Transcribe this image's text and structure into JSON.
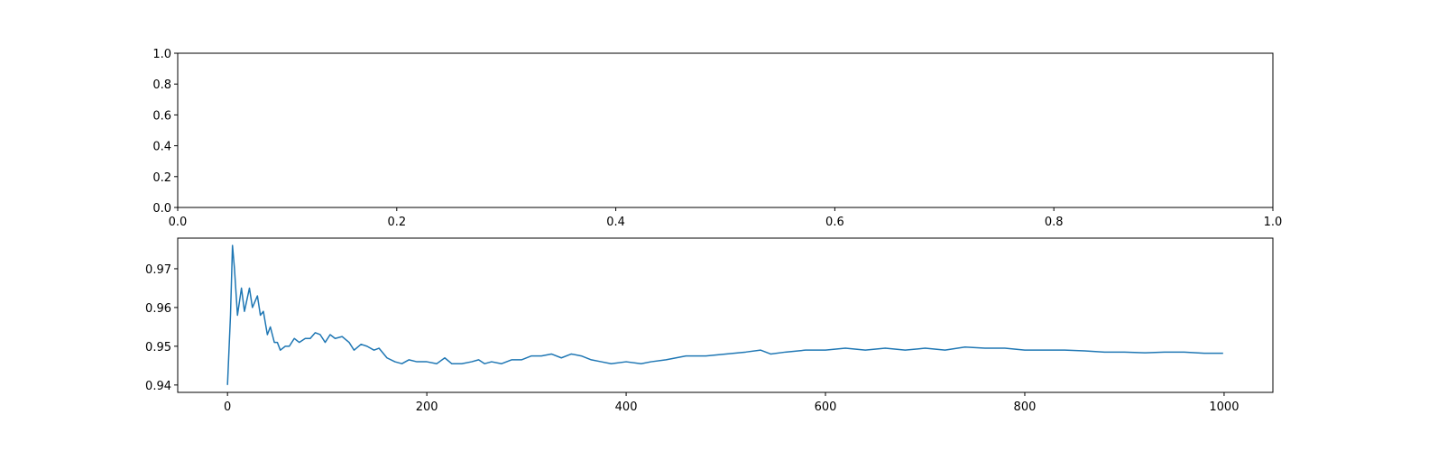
{
  "chart_data": [
    {
      "type": "line",
      "xlim": [
        0,
        1
      ],
      "ylim": [
        0,
        1
      ],
      "xticks": [
        {
          "value": 0,
          "label": "0.0"
        },
        0.2,
        0.4,
        0.6,
        0.8,
        {
          "value": 1,
          "label": "1.0"
        }
      ],
      "yticks": [
        {
          "value": 0,
          "label": "0.0"
        },
        0.2,
        0.4,
        0.6,
        0.8,
        {
          "value": 1,
          "label": "1.0"
        }
      ]
    },
    {
      "type": "line",
      "xlim": [
        -49.95,
        1048.95
      ],
      "ylim": [
        0.9381,
        0.9779
      ],
      "xticks": [
        0,
        200,
        400,
        600,
        800,
        1000
      ],
      "yticks": [
        0.94,
        0.95,
        0.96,
        0.97
      ],
      "x": [
        0,
        3,
        5,
        7,
        10,
        14,
        17,
        22,
        25,
        30,
        33,
        36,
        40,
        43,
        47,
        50,
        53,
        58,
        62,
        67,
        72,
        78,
        83,
        88,
        93,
        98,
        103,
        108,
        115,
        122,
        127,
        134,
        140,
        147,
        152,
        160,
        168,
        175,
        182,
        190,
        200,
        210,
        218,
        225,
        235,
        245,
        252,
        258,
        265,
        275,
        285,
        295,
        305,
        315,
        325,
        335,
        345,
        355,
        365,
        375,
        385,
        400,
        415,
        425,
        440,
        460,
        480,
        500,
        520,
        535,
        545,
        560,
        580,
        600,
        620,
        640,
        660,
        680,
        700,
        720,
        740,
        760,
        780,
        800,
        820,
        840,
        860,
        880,
        900,
        920,
        940,
        960,
        980,
        999
      ],
      "series": [
        {
          "color": "#1f77b4",
          "values": [
            0.94,
            0.958,
            0.976,
            0.97,
            0.958,
            0.965,
            0.959,
            0.965,
            0.96,
            0.963,
            0.958,
            0.959,
            0.953,
            0.955,
            0.951,
            0.951,
            0.949,
            0.95,
            0.95,
            0.952,
            0.951,
            0.952,
            0.952,
            0.9535,
            0.953,
            0.951,
            0.953,
            0.952,
            0.9525,
            0.951,
            0.949,
            0.9505,
            0.95,
            0.949,
            0.9495,
            0.947,
            0.946,
            0.9455,
            0.9465,
            0.946,
            0.946,
            0.9455,
            0.947,
            0.9455,
            0.9455,
            0.946,
            0.9465,
            0.9455,
            0.946,
            0.9455,
            0.9465,
            0.9465,
            0.9475,
            0.9475,
            0.948,
            0.947,
            0.948,
            0.9475,
            0.9465,
            0.946,
            0.9455,
            0.946,
            0.9455,
            0.946,
            0.9465,
            0.9475,
            0.9475,
            0.948,
            0.9485,
            0.949,
            0.948,
            0.9485,
            0.949,
            0.949,
            0.9495,
            0.949,
            0.9495,
            0.949,
            0.9495,
            0.949,
            0.9498,
            0.9495,
            0.9495,
            0.949,
            0.949,
            0.949,
            0.9488,
            0.9485,
            0.9485,
            0.9483,
            0.9485,
            0.9485,
            0.9482,
            0.9482
          ]
        }
      ]
    }
  ]
}
